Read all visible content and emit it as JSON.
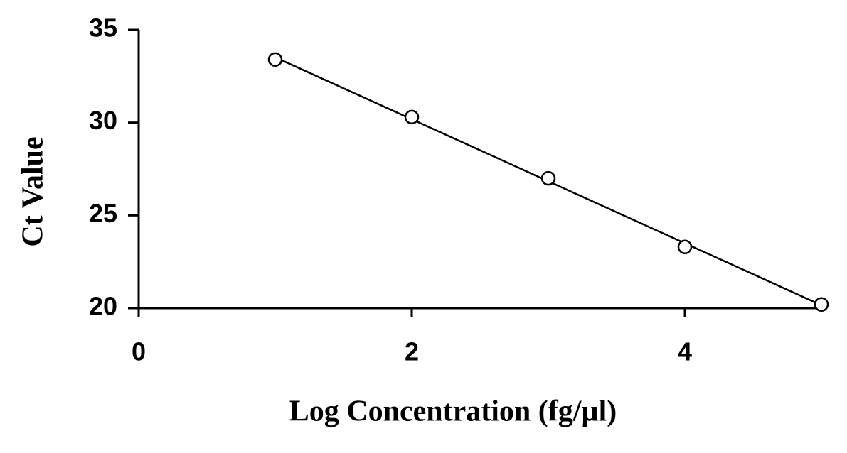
{
  "chart_data": {
    "type": "scatter",
    "x_label": "Log Concentration (fg/µl)",
    "y_label": "Ct Value",
    "x": [
      1,
      2,
      3,
      4,
      5
    ],
    "values": [
      33.4,
      30.3,
      27.0,
      23.3,
      20.2
    ],
    "color": "#000000",
    "trendline": true,
    "xlim": [
      0,
      5
    ],
    "xticks": [
      0,
      2,
      4
    ],
    "ylim": [
      20,
      35
    ],
    "yticks": [
      20,
      25,
      30,
      35
    ],
    "grid": false
  }
}
